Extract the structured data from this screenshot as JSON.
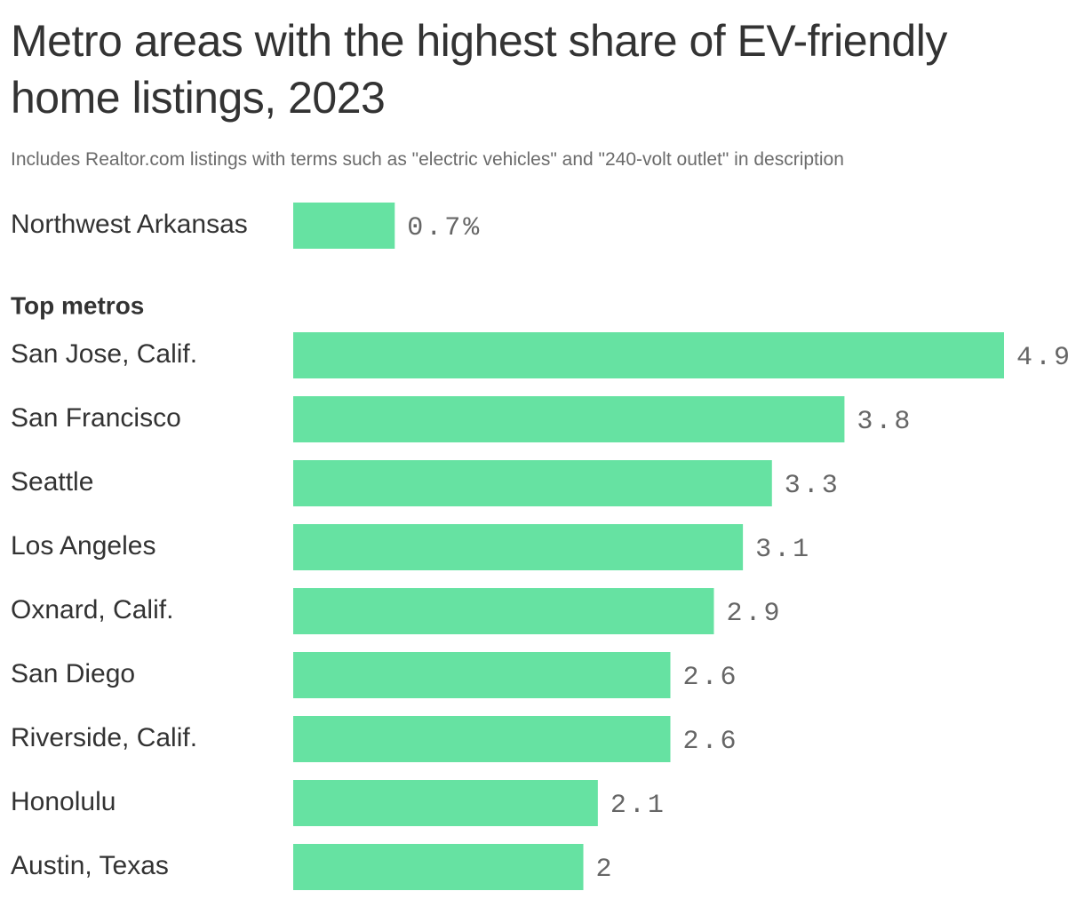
{
  "header": {
    "title": "Metro areas with the highest share of EV-friendly home listings, 2023",
    "subtitle": "Includes Realtor.com listings with terms such as \"electric vehicles\" and \"240-volt outlet\" in description"
  },
  "chart_data": {
    "type": "bar",
    "orientation": "horizontal",
    "bar_color": "#66e2a2",
    "groups": [
      {
        "label": "",
        "categories": [
          "Northwest Arkansas"
        ],
        "values": [
          0.7
        ],
        "value_labels": [
          "0.7%"
        ]
      },
      {
        "label": "Top metros",
        "categories": [
          "San Jose, Calif.",
          "San Francisco",
          "Seattle",
          "Los Angeles",
          "Oxnard, Calif.",
          "San Diego",
          "Riverside, Calif.",
          "Honolulu",
          "Austin, Texas"
        ],
        "values": [
          4.9,
          3.8,
          3.3,
          3.1,
          2.9,
          2.6,
          2.6,
          2.1,
          2.0
        ],
        "value_labels": [
          "4.9",
          "3.8",
          "3.3",
          "3.1",
          "2.9",
          "2.6",
          "2.6",
          "2.1",
          "2"
        ]
      }
    ],
    "xlim": [
      0,
      4.9
    ],
    "grid": false,
    "legend": "none"
  }
}
